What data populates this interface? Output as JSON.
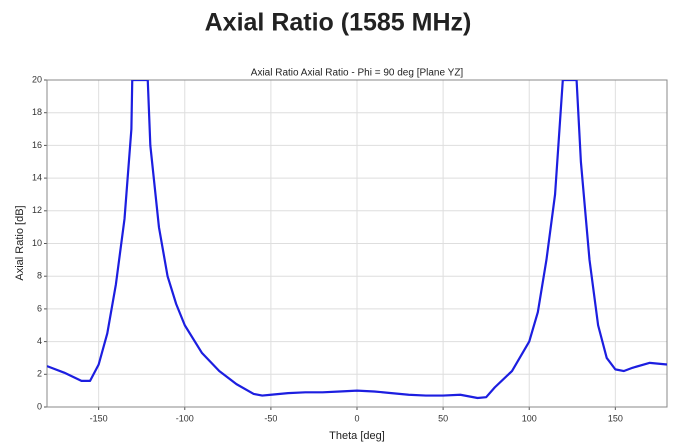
{
  "chart_data": {
    "type": "line",
    "title": "Axial Ratio (1585 MHz)",
    "subtitle": "Axial Ratio Axial Ratio - Phi = 90 deg [Plane YZ]",
    "x_label": "Theta [deg]",
    "y_label": "Axial Ratio [dB]",
    "x": [
      -180,
      -170,
      -160,
      -155,
      -150,
      -145,
      -140,
      -135,
      -131,
      -130.5,
      -121.5,
      -120,
      -115,
      -110,
      -105,
      -100,
      -90,
      -80,
      -70,
      -60,
      -55,
      -50,
      -40,
      -30,
      -20,
      -10,
      0,
      10,
      20,
      30,
      40,
      50,
      60,
      65,
      70,
      75,
      80,
      90,
      100,
      105,
      110,
      115,
      119.5,
      127.5,
      130,
      135,
      140,
      145,
      150,
      155,
      160,
      170,
      180
    ],
    "series": [
      {
        "name": "Axial Ratio",
        "color": "#1c1ee0",
        "values": [
          2.5,
          2.1,
          1.6,
          1.6,
          2.6,
          4.5,
          7.5,
          11.5,
          17,
          20,
          20,
          16,
          11,
          8,
          6.3,
          5,
          3.3,
          2.2,
          1.4,
          0.8,
          0.7,
          0.75,
          0.85,
          0.9,
          0.9,
          0.95,
          1.0,
          0.95,
          0.85,
          0.75,
          0.7,
          0.7,
          0.75,
          0.65,
          0.55,
          0.6,
          1.2,
          2.2,
          4,
          5.8,
          9,
          13,
          20,
          20,
          15,
          9,
          5,
          3,
          2.3,
          2.2,
          2.4,
          2.7,
          2.6
        ]
      }
    ],
    "xlim": [
      -180,
      180
    ],
    "xticks": [
      -150,
      -100,
      -50,
      0,
      50,
      100,
      150
    ],
    "ylim": [
      0,
      20
    ],
    "yticks": [
      0,
      2,
      4,
      6,
      8,
      10,
      12,
      14,
      16,
      18,
      20
    ],
    "grid": true
  }
}
